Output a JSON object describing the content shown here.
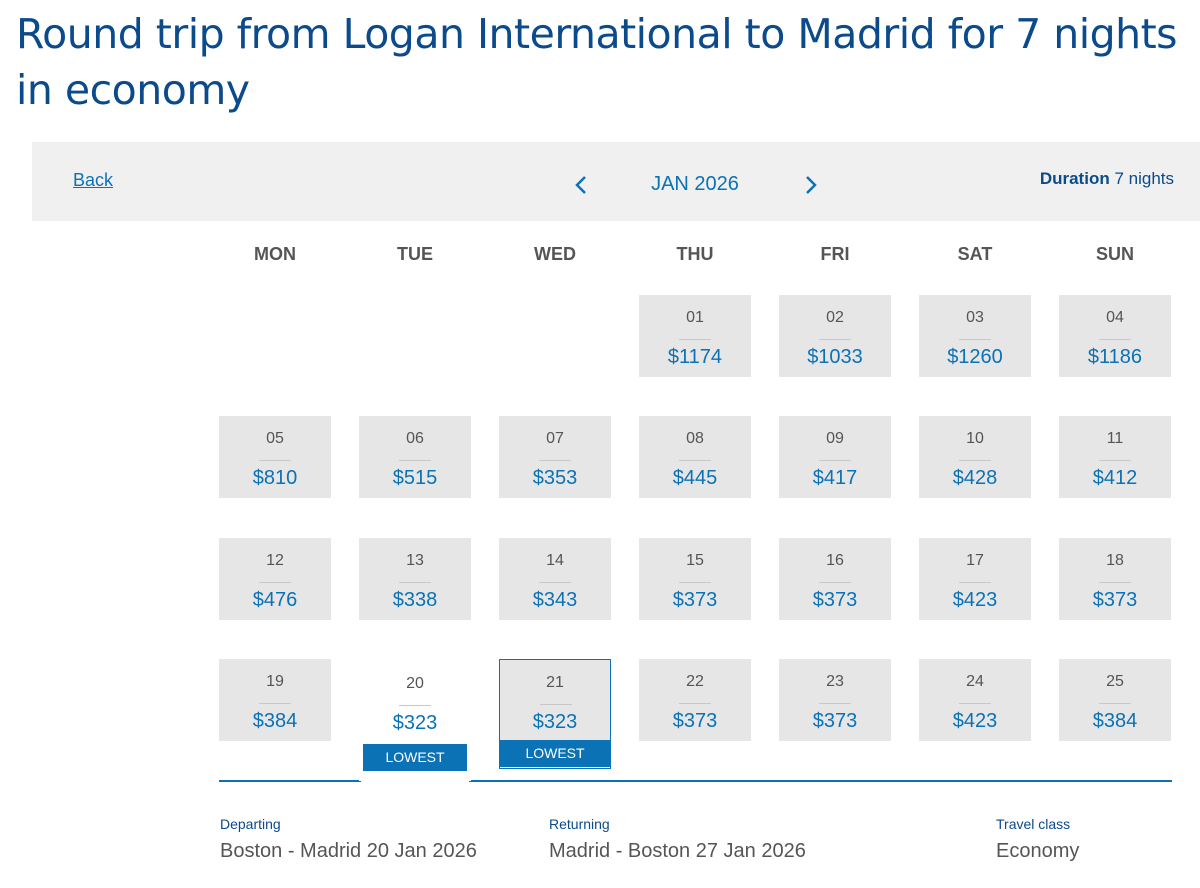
{
  "header": {
    "title": "Round trip from Logan International to Madrid for 7 nights in economy"
  },
  "nav": {
    "back": "Back",
    "month": "JAN 2026",
    "duration_label": "Duration",
    "duration_value": "7 nights"
  },
  "weekdays": [
    "MON",
    "TUE",
    "WED",
    "THU",
    "FRI",
    "SAT",
    "SUN"
  ],
  "weeks": [
    [
      {
        "day": "01",
        "price": "$1174"
      },
      {
        "day": "02",
        "price": "$1033"
      },
      {
        "day": "03",
        "price": "$1260"
      },
      {
        "day": "04",
        "price": "$1186"
      }
    ],
    [
      {
        "day": "05",
        "price": "$810"
      },
      {
        "day": "06",
        "price": "$515"
      },
      {
        "day": "07",
        "price": "$353"
      },
      {
        "day": "08",
        "price": "$445"
      },
      {
        "day": "09",
        "price": "$417"
      },
      {
        "day": "10",
        "price": "$428"
      },
      {
        "day": "11",
        "price": "$412"
      }
    ],
    [
      {
        "day": "12",
        "price": "$476"
      },
      {
        "day": "13",
        "price": "$338"
      },
      {
        "day": "14",
        "price": "$343"
      },
      {
        "day": "15",
        "price": "$373"
      },
      {
        "day": "16",
        "price": "$373"
      },
      {
        "day": "17",
        "price": "$423"
      },
      {
        "day": "18",
        "price": "$373"
      }
    ],
    [
      {
        "day": "19",
        "price": "$384"
      },
      {
        "day": "20",
        "price": "$323",
        "badge": "LOWEST",
        "selected": true
      },
      {
        "day": "21",
        "price": "$323",
        "badge": "LOWEST",
        "highlighted": true
      },
      {
        "day": "22",
        "price": "$373"
      },
      {
        "day": "23",
        "price": "$373"
      },
      {
        "day": "24",
        "price": "$423"
      },
      {
        "day": "25",
        "price": "$384"
      }
    ]
  ],
  "trip": [
    {
      "label": "Departing",
      "value": "Boston - Madrid 20 Jan 2026"
    },
    {
      "label": "Returning",
      "value": "Madrid - Boston 27 Jan 2026"
    },
    {
      "label": "Travel class",
      "value": "Economy"
    }
  ]
}
